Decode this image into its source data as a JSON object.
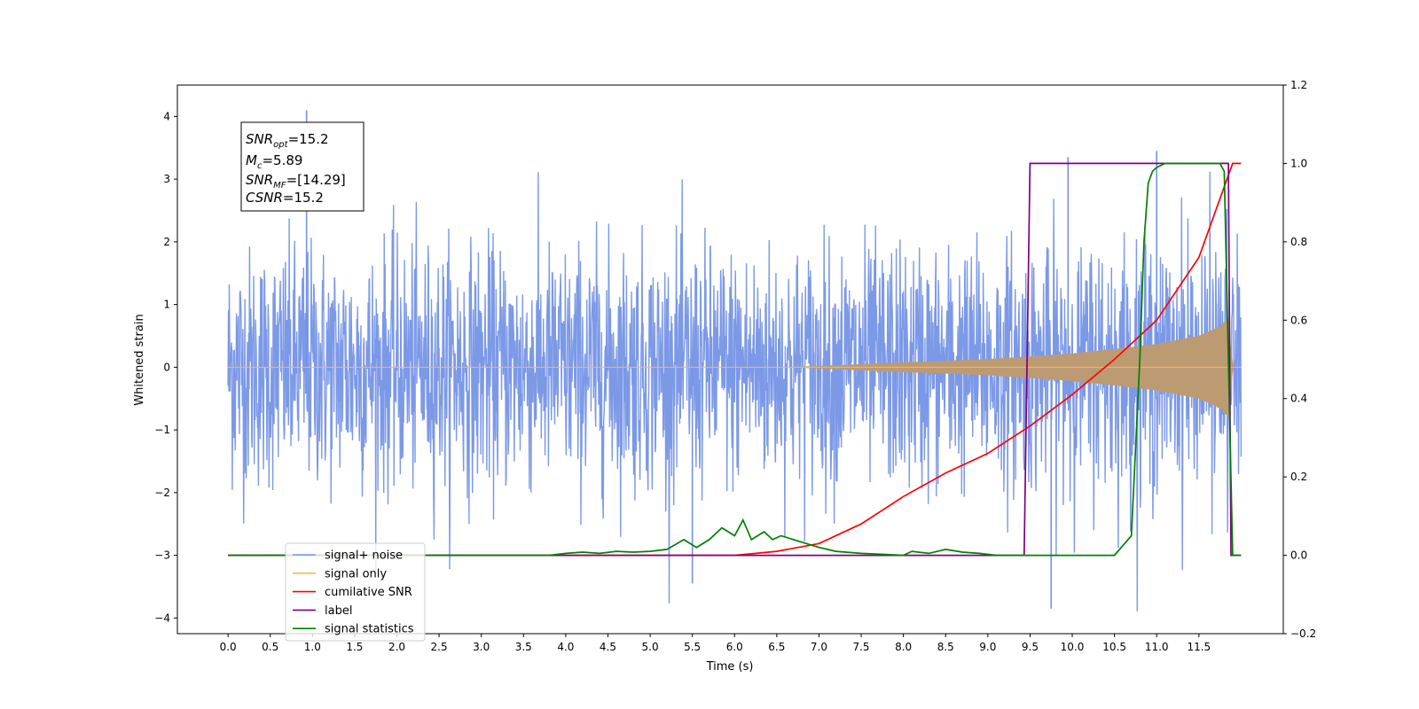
{
  "chart_data": {
    "type": "line",
    "xlabel": "Time (s)",
    "ylabel": "Whitened strain",
    "xlim": [
      -0.6,
      12.5
    ],
    "ylim": [
      -4.25,
      4.5
    ],
    "y2lim": [
      -0.2,
      1.2
    ],
    "x_ticks": [
      0.0,
      0.5,
      1.0,
      1.5,
      2.0,
      2.5,
      3.0,
      3.5,
      4.0,
      4.5,
      5.0,
      5.5,
      6.0,
      6.5,
      7.0,
      7.5,
      8.0,
      8.5,
      9.0,
      9.5,
      10.0,
      10.5,
      11.0,
      11.5
    ],
    "x_tick_labels": [
      "0.0",
      "0.5",
      "1.0",
      "1.5",
      "2.0",
      "2.5",
      "3.0",
      "3.5",
      "4.0",
      "4.5",
      "5.0",
      "5.5",
      "6.0",
      "6.5",
      "7.0",
      "7.5",
      "8.0",
      "8.5",
      "9.0",
      "9.5",
      "10.0",
      "10.5",
      "11.0",
      "11.5"
    ],
    "y_ticks": [
      4,
      3,
      2,
      1,
      0,
      -1,
      -2,
      -3,
      -4
    ],
    "y_tick_labels": [
      "4",
      "3",
      "2",
      "1",
      "0",
      "−1",
      "−2",
      "−3",
      "−4"
    ],
    "y2_ticks": [
      1.2,
      1.0,
      0.8,
      0.6,
      0.4,
      0.2,
      0.0,
      -0.2
    ],
    "y2_tick_labels": [
      "1.2",
      "1.0",
      "0.8",
      "0.6",
      "0.4",
      "0.2",
      "0.0",
      "−0.2"
    ],
    "grid": false,
    "legend_position": "lower-left",
    "series": [
      {
        "name": "signal+ noise",
        "axis": "left",
        "color": "#7593e6",
        "x_range": [
          0.0,
          12.0
        ],
        "envelope_typical": 1.3,
        "peak_values": [
          4.1,
          3.35,
          3.45,
          -3.85,
          -3.45
        ]
      },
      {
        "name": "signal only",
        "axis": "left",
        "color": "#ffb74d",
        "x_range": [
          0.0,
          12.0
        ],
        "amplitude_envelope": {
          "x": [
            0.0,
            6.5,
            7.0,
            7.5,
            8.0,
            8.5,
            9.0,
            9.5,
            10.0,
            10.5,
            11.0,
            11.5,
            11.75,
            11.85,
            11.9,
            12.0
          ],
          "y": [
            0.0,
            0.0,
            0.02,
            0.05,
            0.08,
            0.1,
            0.13,
            0.17,
            0.22,
            0.29,
            0.37,
            0.5,
            0.65,
            0.8,
            0.0,
            0.0
          ]
        }
      },
      {
        "name": "cumilative SNR",
        "axis": "right",
        "color": "#ff0000",
        "x": [
          0.0,
          6.0,
          6.5,
          7.0,
          7.5,
          8.0,
          8.5,
          9.0,
          9.5,
          10.0,
          10.5,
          11.0,
          11.5,
          11.85,
          11.9,
          12.0
        ],
        "y": [
          0.0,
          0.0,
          0.01,
          0.03,
          0.08,
          0.15,
          0.21,
          0.26,
          0.33,
          0.41,
          0.5,
          0.6,
          0.76,
          0.97,
          1.0,
          1.0
        ]
      },
      {
        "name": "label",
        "axis": "right",
        "color": "#800080",
        "x": [
          0.0,
          9.43,
          9.5,
          11.85,
          11.88,
          12.0
        ],
        "y": [
          0.0,
          0.0,
          1.0,
          1.0,
          0.0,
          0.0
        ]
      },
      {
        "name": "signal statistics",
        "axis": "right",
        "color": "#008000",
        "x": [
          0.0,
          3.8,
          4.0,
          4.2,
          4.4,
          4.6,
          4.8,
          5.0,
          5.2,
          5.4,
          5.55,
          5.7,
          5.85,
          6.0,
          6.1,
          6.2,
          6.35,
          6.45,
          6.55,
          6.7,
          6.85,
          7.0,
          7.2,
          7.5,
          8.0,
          8.1,
          8.3,
          8.5,
          8.7,
          8.9,
          9.1,
          10.5,
          10.7,
          10.8,
          10.85,
          10.9,
          10.95,
          11.0,
          11.1,
          11.3,
          11.6,
          11.75,
          11.8,
          11.9,
          12.0
        ],
        "y": [
          0.0,
          0.0,
          0.005,
          0.008,
          0.005,
          0.01,
          0.008,
          0.01,
          0.015,
          0.04,
          0.02,
          0.04,
          0.07,
          0.05,
          0.09,
          0.04,
          0.06,
          0.04,
          0.05,
          0.04,
          0.03,
          0.02,
          0.01,
          0.005,
          0.0,
          0.01,
          0.005,
          0.015,
          0.008,
          0.005,
          0.0,
          0.0,
          0.05,
          0.5,
          0.8,
          0.95,
          0.98,
          0.99,
          1.0,
          1.0,
          1.0,
          1.0,
          0.98,
          0.0,
          0.0
        ]
      }
    ],
    "legend_entries": [
      {
        "name": "signal+ noise",
        "color": "#7593e6"
      },
      {
        "name": "signal only",
        "color": "#ffb74d"
      },
      {
        "name": "cumilative SNR",
        "color": "#ff0000"
      },
      {
        "name": "label",
        "color": "#800080"
      },
      {
        "name": "signal statistics",
        "color": "#008000"
      }
    ],
    "annotation": {
      "lines": [
        {
          "base": "SNR",
          "sub": "opt",
          "value": "=15.2"
        },
        {
          "base": "M",
          "sub": "c",
          "value": "=5.89"
        },
        {
          "base": "SNR",
          "sub": "MF",
          "value": "=[14.29]"
        },
        {
          "base": "CSNR",
          "sub": "",
          "value": "=15.2"
        }
      ]
    }
  }
}
